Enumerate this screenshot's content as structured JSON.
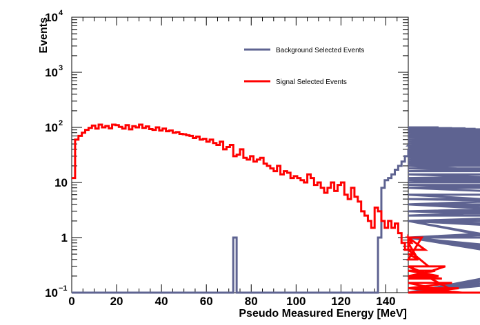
{
  "chart_data": {
    "type": "line",
    "title": "",
    "xlabel": "Pseudo Measured Energy [MeV]",
    "ylabel": "Events",
    "xlim": [
      0,
      150
    ],
    "ylim": [
      0.1,
      10000
    ],
    "yscale": "log",
    "x_ticks": [
      0,
      20,
      40,
      60,
      80,
      100,
      120,
      140
    ],
    "y_ticks": [
      {
        "value": 0.1,
        "base": "10",
        "exp": "−1"
      },
      {
        "value": 1,
        "base": "1",
        "exp": ""
      },
      {
        "value": 10,
        "base": "10",
        "exp": ""
      },
      {
        "value": 100,
        "base": "10",
        "exp": "2"
      },
      {
        "value": 1000,
        "base": "10",
        "exp": "3"
      },
      {
        "value": 10000,
        "base": "10",
        "exp": "4"
      }
    ],
    "bin_width": 1.5,
    "legend": {
      "placement": "top-right"
    },
    "series": [
      {
        "name": "Background Selected Events",
        "color": "#5e6391",
        "values": [
          0.1,
          0.1,
          0.1,
          0.1,
          0.1,
          0.1,
          0.1,
          0.1,
          0.1,
          0.1,
          0.1,
          0.1,
          0.1,
          0.1,
          0.1,
          0.1,
          0.1,
          0.1,
          0.1,
          0.1,
          0.1,
          0.1,
          0.1,
          0.1,
          0.1,
          0.1,
          0.1,
          0.1,
          0.1,
          0.1,
          0.1,
          0.1,
          0.1,
          0.1,
          0.1,
          0.1,
          0.1,
          0.1,
          0.1,
          0.1,
          0.1,
          0.1,
          0.1,
          0.1,
          0.1,
          0.1,
          0.1,
          0.1,
          1,
          0.1,
          0.1,
          0.1,
          0.1,
          0.1,
          0.1,
          0.1,
          0.1,
          0.1,
          0.1,
          0.1,
          0.1,
          0.1,
          0.1,
          0.1,
          0.1,
          0.1,
          0.1,
          0.1,
          0.1,
          0.1,
          0.1,
          0.1,
          0.1,
          0.1,
          0.1,
          0.1,
          0.1,
          0.1,
          0.1,
          0.1,
          0.1,
          0.1,
          0.1,
          0.1,
          0.1,
          0.1,
          0.1,
          0.1,
          0.1,
          0.1,
          0.1,
          1,
          8,
          11,
          12,
          14,
          17,
          20,
          24,
          30,
          38,
          47,
          60,
          72,
          82,
          92,
          95,
          100,
          90,
          100,
          95,
          85,
          88,
          97,
          95,
          90,
          92,
          96,
          88,
          90,
          94,
          85,
          92,
          84,
          80,
          75,
          83,
          79,
          77,
          80,
          70,
          72,
          68,
          78,
          66,
          62,
          56,
          52,
          60,
          54,
          48,
          52,
          46,
          44,
          50,
          42,
          47,
          36,
          44,
          34,
          38,
          32,
          40,
          30,
          33,
          28,
          31,
          25,
          27,
          24,
          29,
          26,
          21,
          23,
          28,
          22,
          18,
          16,
          20,
          12,
          14,
          10,
          12,
          9,
          8,
          9,
          8,
          11,
          8,
          5,
          4,
          6,
          3,
          4,
          3,
          2.5,
          4,
          3,
          3,
          4,
          2,
          2,
          3,
          2,
          1,
          1,
          2,
          2,
          2,
          1,
          0.1,
          1,
          1,
          0.1,
          1,
          0.1,
          1,
          1,
          2,
          2,
          1,
          0.1,
          2,
          0.1,
          0.1,
          2,
          1,
          2,
          1,
          1,
          2,
          0.1,
          0.1,
          0.1,
          0.1,
          0.1,
          1,
          1,
          2,
          1,
          1,
          0.1,
          1,
          1,
          1,
          2,
          2,
          1,
          1,
          1,
          1,
          0.1,
          0.1,
          0.1,
          1,
          1,
          1,
          1,
          1,
          1,
          1,
          1,
          1,
          2,
          2,
          2,
          1,
          1,
          1,
          1,
          1,
          1,
          1,
          1,
          1,
          1,
          1,
          1,
          1,
          1,
          1,
          1,
          0.1,
          0.1,
          1,
          1,
          1,
          1,
          1,
          1,
          1
        ]
      },
      {
        "name": "Signal Selected Events",
        "color": "#ff0000",
        "values": [
          12,
          60,
          70,
          80,
          90,
          98,
          108,
          95,
          112,
          100,
          106,
          96,
          112,
          110,
          102,
          95,
          110,
          92,
          105,
          100,
          112,
          98,
          104,
          93,
          90,
          100,
          88,
          95,
          85,
          88,
          80,
          82,
          76,
          75,
          72,
          70,
          64,
          68,
          60,
          62,
          55,
          60,
          52,
          48,
          55,
          40,
          44,
          48,
          30,
          32,
          40,
          28,
          26,
          30,
          24,
          26,
          28,
          22,
          20,
          18,
          16,
          20,
          14,
          16,
          15,
          12,
          13,
          12,
          11,
          10,
          14,
          12,
          9,
          10,
          8,
          6.5,
          8,
          10,
          7,
          9,
          10,
          6,
          5,
          8,
          5.5,
          4.5,
          3,
          2.5,
          2,
          1.5,
          3.5,
          3,
          2,
          1.5,
          2,
          1.5,
          1.8,
          1.2,
          0.8,
          0.6,
          1,
          0.8,
          0.5,
          0.4,
          1,
          0.6,
          0.3,
          0.2,
          0.25,
          0.2,
          0.18,
          0.3,
          0.12,
          0.15,
          0.1,
          0.12,
          0.1,
          0.1,
          0.1,
          0.1,
          0.1,
          0.1,
          0.1,
          0.1,
          0.1,
          0.1,
          0.1,
          0.1,
          0.1,
          0.1,
          0.1,
          0.1,
          0.1,
          0.1,
          0.1,
          0.1,
          0.1,
          0.1,
          0.1,
          0.1,
          0.1,
          0.1,
          0.1,
          0.1,
          0.1,
          0.1,
          0.1,
          0.1,
          0.1,
          0.1,
          0.1,
          0.1,
          0.1,
          0.1,
          0.1,
          0.1,
          0.1,
          0.1,
          0.1,
          0.1,
          0.1,
          0.1,
          0.1,
          0.1,
          0.1,
          0.1,
          0.1,
          0.1,
          0.1,
          0.1,
          0.1,
          0.1,
          0.1,
          0.1,
          0.1,
          0.1,
          0.1,
          0.1,
          0.1,
          0.1,
          0.1,
          0.1,
          0.1,
          0.1,
          0.1,
          0.1,
          0.1,
          0.1,
          0.1,
          0.1,
          0.1,
          0.1,
          0.1,
          0.1,
          0.1,
          0.1,
          0.1,
          0.1,
          0.1,
          0.1,
          0.1,
          0.1,
          0.1,
          0.1,
          0.1,
          0.1,
          0.1,
          0.1,
          0.1,
          0.1,
          0.1,
          0.1,
          0.1,
          0.1,
          0.1,
          0.1,
          0.1,
          0.1,
          0.1,
          0.1,
          0.1,
          0.1,
          0.1,
          0.1,
          0.1,
          0.1,
          0.1,
          0.1,
          0.1,
          0.1,
          0.1,
          0.1,
          0.1,
          0.1,
          0.1,
          0.1,
          0.1,
          0.1,
          0.1,
          0.1,
          0.1,
          0.1,
          0.1,
          0.1,
          0.1,
          0.1,
          0.1,
          0.1,
          0.1,
          0.1,
          0.1,
          0.1,
          0.1,
          0.1,
          0.1,
          0.1,
          0.1,
          0.1,
          0.1,
          0.1,
          0.1,
          0.1,
          0.1,
          0.1,
          0.1,
          0.1,
          0.1,
          0.1,
          0.1,
          0.1,
          0.1,
          0.1,
          0.1,
          0.1,
          0.1,
          0.1,
          0.1,
          0.1,
          0.1,
          0.1,
          0.1,
          0.1,
          0.1,
          0.1,
          0.1,
          0.1,
          0.1,
          0.1,
          0.1,
          0.1,
          0.1,
          0.1,
          0.1,
          0.1,
          0.1
        ]
      }
    ]
  }
}
